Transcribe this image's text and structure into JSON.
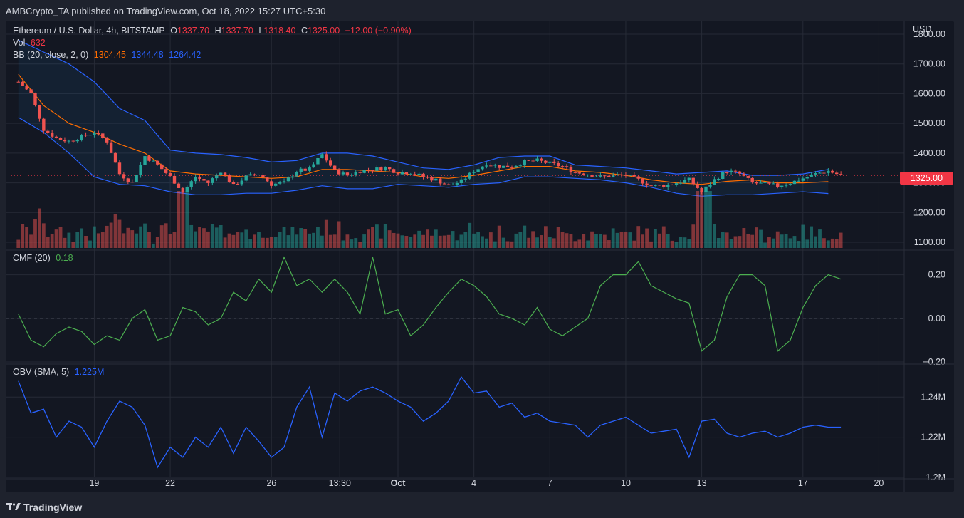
{
  "header": {
    "published": "AMBCrypto_TA published on TradingView.com, Oct 18, 2022 15:27 UTC+5:30"
  },
  "symbol": {
    "name": "Ethereum / U.S. Dollar, 4h, BITSTAMP",
    "o_label": "O",
    "o": "1337.70",
    "h_label": "H",
    "h": "1337.70",
    "l_label": "L",
    "l": "1318.40",
    "c_label": "C",
    "c": "1325.00",
    "change": "−12.00 (−0.90%)"
  },
  "vol": {
    "label": "Vol",
    "value": "632"
  },
  "bb": {
    "label": "BB (20, close, 2, 0)",
    "basis": "1304.45",
    "upper": "1344.48",
    "lower": "1264.42"
  },
  "cmf": {
    "label": "CMF (20)",
    "value": "0.18"
  },
  "obv": {
    "label": "OBV (SMA, 5)",
    "value": "1.225M"
  },
  "price_axis": {
    "currency": "USD",
    "last_price": "1325.00"
  },
  "footer": {
    "brand": "TradingView"
  },
  "colors": {
    "up": "#26a69a",
    "down": "#ef5350",
    "bb_basis": "#ff6d00",
    "bb_band": "#2962ff",
    "cmf_line": "#4caf50",
    "obv_line": "#2962ff",
    "grid": "#262a36"
  },
  "chart_data": [
    {
      "type": "candlestick",
      "title": "Ethereum / U.S. Dollar, 4h, BITSTAMP",
      "x_labels": [
        "19",
        "22",
        "26",
        "13:30",
        "Oct",
        "4",
        "7",
        "10",
        "13",
        "17",
        "20"
      ],
      "x_label_positions": [
        3.0,
        6.0,
        10.0,
        12.7,
        15.0,
        18.0,
        21.0,
        24.0,
        27.0,
        31.0,
        34.0
      ],
      "x_range_days": [
        -0.5,
        35.0
      ],
      "ylim": [
        1100,
        1800
      ],
      "y_ticks": [
        "1800.00",
        "1700.00",
        "1600.00",
        "1500.00",
        "1400.00",
        "1300.00",
        "1200.00",
        "1100.00"
      ],
      "close_path": [
        [
          0,
          1640
        ],
        [
          0.5,
          1600
        ],
        [
          1,
          1480
        ],
        [
          1.5,
          1450
        ],
        [
          2,
          1440
        ],
        [
          2.5,
          1455
        ],
        [
          3,
          1470
        ],
        [
          3.5,
          1440
        ],
        [
          4,
          1330
        ],
        [
          4.5,
          1300
        ],
        [
          5,
          1390
        ],
        [
          5.5,
          1360
        ],
        [
          6,
          1320
        ],
        [
          6.5,
          1270
        ],
        [
          7,
          1320
        ],
        [
          7.5,
          1300
        ],
        [
          8,
          1340
        ],
        [
          8.5,
          1290
        ],
        [
          9,
          1320
        ],
        [
          9.5,
          1330
        ],
        [
          10,
          1295
        ],
        [
          10.5,
          1300
        ],
        [
          11,
          1340
        ],
        [
          11.5,
          1345
        ],
        [
          12,
          1395
        ],
        [
          12.5,
          1340
        ],
        [
          13,
          1325
        ],
        [
          13.5,
          1340
        ],
        [
          14,
          1345
        ],
        [
          14.5,
          1350
        ],
        [
          15,
          1335
        ],
        [
          15.5,
          1335
        ],
        [
          16,
          1320
        ],
        [
          16.5,
          1310
        ],
        [
          17,
          1290
        ],
        [
          17.5,
          1305
        ],
        [
          18,
          1340
        ],
        [
          18.5,
          1365
        ],
        [
          19,
          1355
        ],
        [
          19.5,
          1355
        ],
        [
          20,
          1370
        ],
        [
          20.5,
          1375
        ],
        [
          21,
          1365
        ],
        [
          21.5,
          1355
        ],
        [
          22,
          1335
        ],
        [
          22.5,
          1330
        ],
        [
          23,
          1320
        ],
        [
          23.5,
          1325
        ],
        [
          24,
          1325
        ],
        [
          24.5,
          1310
        ],
        [
          25,
          1290
        ],
        [
          25.5,
          1290
        ],
        [
          26,
          1300
        ],
        [
          26.5,
          1310
        ],
        [
          27,
          1270
        ],
        [
          27.5,
          1310
        ],
        [
          28,
          1340
        ],
        [
          28.5,
          1330
        ],
        [
          29,
          1300
        ],
        [
          29.5,
          1295
        ],
        [
          30,
          1290
        ],
        [
          30.5,
          1300
        ],
        [
          31,
          1315
        ],
        [
          31.5,
          1330
        ],
        [
          32,
          1340
        ],
        [
          32.5,
          1325
        ]
      ],
      "bb_upper": [
        [
          0,
          1780
        ],
        [
          1,
          1740
        ],
        [
          2,
          1700
        ],
        [
          3,
          1640
        ],
        [
          4,
          1550
        ],
        [
          5,
          1510
        ],
        [
          6,
          1410
        ],
        [
          7,
          1400
        ],
        [
          8,
          1395
        ],
        [
          9,
          1385
        ],
        [
          10,
          1370
        ],
        [
          11,
          1375
        ],
        [
          12,
          1400
        ],
        [
          13,
          1400
        ],
        [
          14,
          1390
        ],
        [
          15,
          1370
        ],
        [
          16,
          1350
        ],
        [
          17,
          1345
        ],
        [
          18,
          1360
        ],
        [
          19,
          1385
        ],
        [
          20,
          1390
        ],
        [
          21,
          1390
        ],
        [
          22,
          1360
        ],
        [
          23,
          1355
        ],
        [
          24,
          1350
        ],
        [
          25,
          1340
        ],
        [
          26,
          1330
        ],
        [
          27,
          1335
        ],
        [
          28,
          1340
        ],
        [
          29,
          1325
        ],
        [
          30,
          1325
        ],
        [
          31,
          1330
        ],
        [
          32,
          1345
        ]
      ],
      "bb_basis": [
        [
          0,
          1665
        ],
        [
          1,
          1560
        ],
        [
          2,
          1500
        ],
        [
          3,
          1470
        ],
        [
          4,
          1430
        ],
        [
          5,
          1400
        ],
        [
          6,
          1340
        ],
        [
          7,
          1330
        ],
        [
          8,
          1325
        ],
        [
          9,
          1320
        ],
        [
          10,
          1315
        ],
        [
          11,
          1320
        ],
        [
          12,
          1345
        ],
        [
          13,
          1345
        ],
        [
          14,
          1340
        ],
        [
          15,
          1335
        ],
        [
          16,
          1320
        ],
        [
          17,
          1315
        ],
        [
          18,
          1325
        ],
        [
          19,
          1340
        ],
        [
          20,
          1355
        ],
        [
          21,
          1355
        ],
        [
          22,
          1340
        ],
        [
          23,
          1335
        ],
        [
          24,
          1325
        ],
        [
          25,
          1310
        ],
        [
          26,
          1300
        ],
        [
          27,
          1295
        ],
        [
          28,
          1305
        ],
        [
          29,
          1310
        ],
        [
          30,
          1300
        ],
        [
          31,
          1300
        ],
        [
          32,
          1304
        ]
      ],
      "bb_lower": [
        [
          0,
          1520
        ],
        [
          1,
          1470
        ],
        [
          2,
          1400
        ],
        [
          3,
          1320
        ],
        [
          4,
          1295
        ],
        [
          5,
          1290
        ],
        [
          6,
          1270
        ],
        [
          7,
          1260
        ],
        [
          8,
          1260
        ],
        [
          9,
          1265
        ],
        [
          10,
          1265
        ],
        [
          11,
          1275
        ],
        [
          12,
          1290
        ],
        [
          13,
          1280
        ],
        [
          14,
          1280
        ],
        [
          15,
          1295
        ],
        [
          16,
          1290
        ],
        [
          17,
          1285
        ],
        [
          18,
          1295
        ],
        [
          19,
          1300
        ],
        [
          20,
          1320
        ],
        [
          21,
          1320
        ],
        [
          22,
          1315
        ],
        [
          23,
          1310
        ],
        [
          24,
          1300
        ],
        [
          25,
          1285
        ],
        [
          26,
          1265
        ],
        [
          27,
          1255
        ],
        [
          28,
          1260
        ],
        [
          29,
          1260
        ],
        [
          30,
          1265
        ],
        [
          31,
          1270
        ],
        [
          32,
          1264
        ]
      ],
      "last_price": 1325.0
    },
    {
      "type": "line",
      "title": "CMF (20)",
      "ylim": [
        -0.2,
        0.3
      ],
      "y_ticks": [
        "0.20",
        "0.00",
        "−0.20"
      ],
      "x": [
        0,
        0.5,
        1,
        1.5,
        2,
        2.5,
        3,
        3.5,
        4,
        4.5,
        5,
        5.5,
        6,
        6.5,
        7,
        7.5,
        8,
        8.5,
        9,
        9.5,
        10,
        10.5,
        11,
        11.5,
        12,
        12.5,
        13,
        13.5,
        14,
        14.5,
        15,
        15.5,
        16,
        16.5,
        17,
        17.5,
        18,
        18.5,
        19,
        19.5,
        20,
        20.5,
        21,
        21.5,
        22,
        22.5,
        23,
        23.5,
        24,
        24.5,
        25,
        25.5,
        26,
        26.5,
        27,
        27.5,
        28,
        28.5,
        29,
        29.5,
        30,
        30.5,
        31,
        31.5,
        32,
        32.5
      ],
      "values": [
        0.02,
        -0.1,
        -0.13,
        -0.07,
        -0.04,
        -0.06,
        -0.12,
        -0.08,
        -0.1,
        0.0,
        0.04,
        -0.1,
        -0.08,
        0.05,
        0.03,
        -0.03,
        0.0,
        0.12,
        0.08,
        0.18,
        0.12,
        0.28,
        0.15,
        0.18,
        0.12,
        0.18,
        0.12,
        0.02,
        0.28,
        0.02,
        0.04,
        -0.08,
        -0.03,
        0.05,
        0.12,
        0.18,
        0.15,
        0.1,
        0.02,
        0.0,
        -0.03,
        0.05,
        -0.05,
        -0.08,
        -0.04,
        0.0,
        0.15,
        0.2,
        0.2,
        0.26,
        0.15,
        0.12,
        0.09,
        0.07,
        -0.15,
        -0.1,
        0.1,
        0.2,
        0.2,
        0.15,
        -0.15,
        -0.1,
        0.05,
        0.15,
        0.2,
        0.18
      ]
    },
    {
      "type": "line",
      "title": "OBV (SMA, 5)",
      "ylim": [
        1.2,
        1.255
      ],
      "y_ticks": [
        "1.24M",
        "1.22M",
        "1.2M"
      ],
      "x": [
        0,
        0.5,
        1,
        1.5,
        2,
        2.5,
        3,
        3.5,
        4,
        4.5,
        5,
        5.5,
        6,
        6.5,
        7,
        7.5,
        8,
        8.5,
        9,
        9.5,
        10,
        10.5,
        11,
        11.5,
        12,
        12.5,
        13,
        13.5,
        14,
        14.5,
        15,
        15.5,
        16,
        16.5,
        17,
        17.5,
        18,
        18.5,
        19,
        19.5,
        20,
        20.5,
        21,
        21.5,
        22,
        22.5,
        23,
        23.5,
        24,
        24.5,
        25,
        25.5,
        26,
        26.5,
        27,
        27.5,
        28,
        28.5,
        29,
        29.5,
        30,
        30.5,
        31,
        31.5,
        32,
        32.5
      ],
      "values": [
        1.248,
        1.232,
        1.234,
        1.22,
        1.228,
        1.225,
        1.215,
        1.228,
        1.238,
        1.235,
        1.226,
        1.205,
        1.215,
        1.21,
        1.22,
        1.215,
        1.225,
        1.212,
        1.225,
        1.218,
        1.21,
        1.215,
        1.235,
        1.245,
        1.22,
        1.242,
        1.238,
        1.243,
        1.245,
        1.242,
        1.238,
        1.235,
        1.228,
        1.232,
        1.238,
        1.25,
        1.242,
        1.243,
        1.235,
        1.237,
        1.23,
        1.232,
        1.228,
        1.227,
        1.226,
        1.22,
        1.226,
        1.228,
        1.23,
        1.226,
        1.222,
        1.223,
        1.224,
        1.21,
        1.228,
        1.229,
        1.222,
        1.22,
        1.222,
        1.223,
        1.22,
        1.222,
        1.225,
        1.226,
        1.225,
        1.225
      ]
    }
  ]
}
